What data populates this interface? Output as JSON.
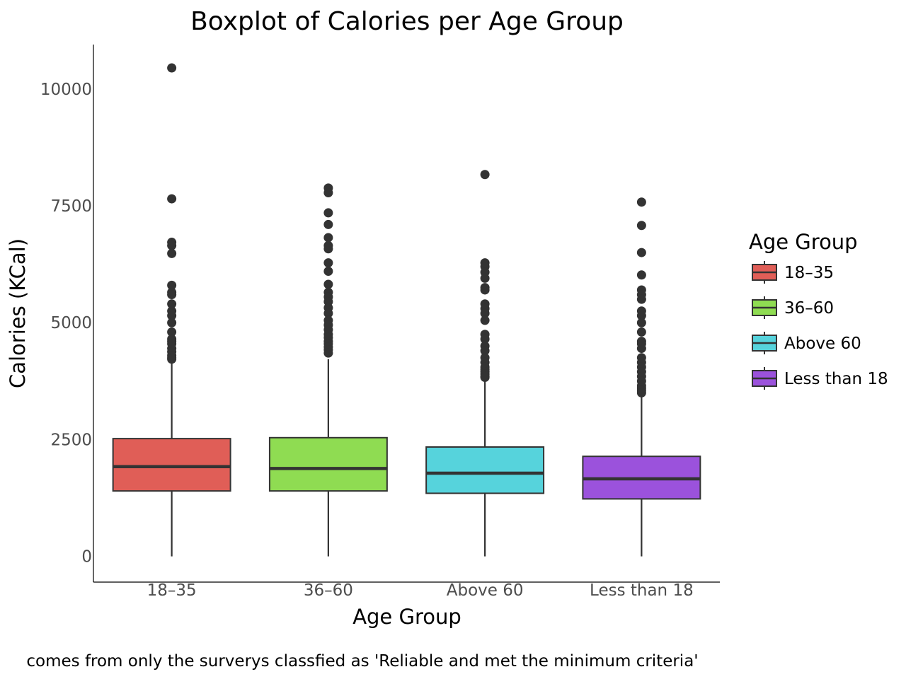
{
  "chart_data": {
    "type": "boxplot",
    "title": "Boxplot of Calories per Age Group",
    "xlabel": "Age Group",
    "ylabel": "Calories (KCal)",
    "caption": "comes from only the surverys classfied as 'Reliable and met the minimum criteria'",
    "ylim": [
      -550,
      10950
    ],
    "yticks": [
      0,
      2500,
      5000,
      7500,
      10000
    ],
    "ytick_labels": [
      "0",
      "2500",
      "5000",
      "7500",
      "10000"
    ],
    "grid": false,
    "legend": {
      "title": "Age Group",
      "placement": "right"
    },
    "categories": [
      "18–35",
      "36–60",
      "Above 60",
      "Less than 18"
    ],
    "series": [
      {
        "name": "18–35",
        "color": "#e05e57",
        "whisker_low": 0,
        "q1": 1400,
        "median": 1920,
        "q3": 2520,
        "whisker_high": 4200,
        "outliers": [
          10450,
          7650,
          6720,
          6650,
          6480,
          5800,
          5650,
          5600,
          5400,
          5250,
          5150,
          5000,
          4800,
          4650,
          4600,
          4550,
          4450,
          4380,
          4300,
          4250,
          4220
        ]
      },
      {
        "name": "36–60",
        "color": "#8fdc52",
        "whisker_low": 0,
        "q1": 1400,
        "median": 1880,
        "q3": 2540,
        "whisker_high": 4220,
        "outliers": [
          7880,
          7780,
          7350,
          7100,
          6820,
          6650,
          6580,
          6280,
          6100,
          5820,
          5650,
          5550,
          5450,
          5320,
          5200,
          5050,
          4950,
          4850,
          4750,
          4680,
          4600,
          4550,
          4480,
          4420,
          4350
        ]
      },
      {
        "name": "Above 60",
        "color": "#56d3dc",
        "whisker_low": 0,
        "q1": 1350,
        "median": 1780,
        "q3": 2340,
        "whisker_high": 3800,
        "outliers": [
          8170,
          6280,
          6200,
          6080,
          5950,
          5750,
          5700,
          5400,
          5300,
          5200,
          5050,
          4750,
          4650,
          4500,
          4400,
          4250,
          4150,
          4050,
          4000,
          3950,
          3900,
          3850,
          3830
        ]
      },
      {
        "name": "Less than 18",
        "color": "#9b52dc",
        "whisker_low": 0,
        "q1": 1230,
        "median": 1660,
        "q3": 2140,
        "whisker_high": 3450,
        "outliers": [
          7580,
          7080,
          6500,
          6020,
          5700,
          5600,
          5500,
          5250,
          5150,
          5000,
          4800,
          4600,
          4550,
          4450,
          4250,
          4150,
          4050,
          3950,
          3850,
          3750,
          3650,
          3600,
          3550,
          3500
        ]
      }
    ]
  }
}
